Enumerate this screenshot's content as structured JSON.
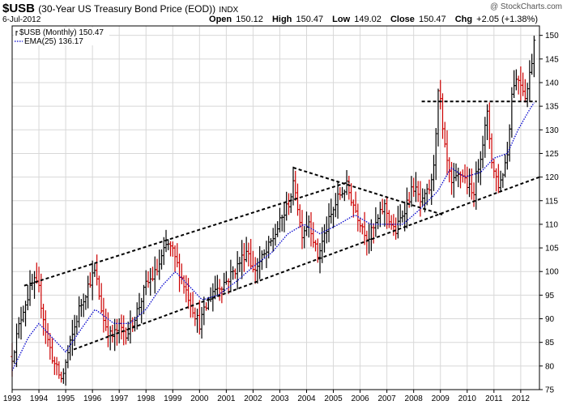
{
  "header": {
    "symbol": "$USB",
    "description": "(30-Year US Treasury Bond Price (EOD))",
    "exchange": "INDX",
    "date": "6-Jul-2012",
    "watermark": "@ StockCharts.com",
    "open_label": "Open",
    "open": "150.12",
    "high_label": "High",
    "high": "150.47",
    "low_label": "Low",
    "low": "149.02",
    "close_label": "Close",
    "close": "150.47",
    "chg_label": "Chg",
    "chg": "+2.05 (+1.38%)"
  },
  "legend": {
    "price": "$USB (Monthly) 150.47",
    "ema": "EMA(25) 136.17"
  },
  "colors": {
    "up": "#000000",
    "down": "#cc0000",
    "ema": "#0000cc",
    "trend": "#000000",
    "grid": "#d8d8d8"
  },
  "chart_data": {
    "type": "ohlc",
    "title": "$USB (30-Year US Treasury Bond Price (EOD))",
    "ylim": [
      75,
      152
    ],
    "xlim": [
      1993.0,
      2012.7
    ],
    "y_ticks": [
      75,
      80,
      85,
      90,
      95,
      100,
      105,
      110,
      115,
      120,
      125,
      130,
      135,
      140,
      145,
      150
    ],
    "x_ticks": [
      "1993",
      "1994",
      "1995",
      "1996",
      "1997",
      "1998",
      "1999",
      "2000",
      "2001",
      "2002",
      "2003",
      "2004",
      "2005",
      "2006",
      "2007",
      "2008",
      "2009",
      "2010",
      "2011",
      "2012"
    ],
    "grid": true,
    "price_anchors": [
      [
        1993.0,
        82
      ],
      [
        1993.4,
        92
      ],
      [
        1993.8,
        98
      ],
      [
        1994.0,
        96
      ],
      [
        1994.3,
        86
      ],
      [
        1994.6,
        80
      ],
      [
        1994.85,
        77
      ],
      [
        1995.1,
        83
      ],
      [
        1995.5,
        92
      ],
      [
        1995.9,
        98
      ],
      [
        1996.1,
        100
      ],
      [
        1996.4,
        90
      ],
      [
        1996.7,
        86
      ],
      [
        1997.0,
        88
      ],
      [
        1997.3,
        87
      ],
      [
        1997.7,
        92
      ],
      [
        1998.0,
        97
      ],
      [
        1998.4,
        100
      ],
      [
        1998.8,
        106
      ],
      [
        1999.0,
        104
      ],
      [
        1999.5,
        96
      ],
      [
        1999.9,
        90
      ],
      [
        2000.0,
        89
      ],
      [
        2000.5,
        96
      ],
      [
        2001.0,
        98
      ],
      [
        2001.4,
        101
      ],
      [
        2001.8,
        105
      ],
      [
        2002.0,
        100
      ],
      [
        2002.5,
        104
      ],
      [
        2002.9,
        109
      ],
      [
        2003.3,
        114
      ],
      [
        2003.55,
        119
      ],
      [
        2003.8,
        108
      ],
      [
        2004.1,
        111
      ],
      [
        2004.4,
        103
      ],
      [
        2004.8,
        110
      ],
      [
        2005.2,
        116
      ],
      [
        2005.5,
        118
      ],
      [
        2005.9,
        112
      ],
      [
        2006.3,
        107
      ],
      [
        2006.6,
        110
      ],
      [
        2006.9,
        114
      ],
      [
        2007.3,
        108
      ],
      [
        2007.7,
        114
      ],
      [
        2008.0,
        118
      ],
      [
        2008.3,
        114
      ],
      [
        2008.7,
        119
      ],
      [
        2008.95,
        140
      ],
      [
        2009.1,
        128
      ],
      [
        2009.4,
        118
      ],
      [
        2009.8,
        121
      ],
      [
        2010.2,
        116
      ],
      [
        2010.6,
        128
      ],
      [
        2010.75,
        133
      ],
      [
        2010.95,
        122
      ],
      [
        2011.2,
        118
      ],
      [
        2011.5,
        125
      ],
      [
        2011.7,
        140
      ],
      [
        2011.95,
        141
      ],
      [
        2012.2,
        137
      ],
      [
        2012.4,
        144
      ],
      [
        2012.52,
        150.5
      ]
    ],
    "ema_anchors": [
      [
        1993.0,
        79
      ],
      [
        1993.6,
        86
      ],
      [
        1994.0,
        89
      ],
      [
        1994.5,
        86
      ],
      [
        1995.0,
        83
      ],
      [
        1995.6,
        88
      ],
      [
        1996.1,
        92
      ],
      [
        1996.8,
        89
      ],
      [
        1997.4,
        89
      ],
      [
        1998.0,
        92
      ],
      [
        1998.6,
        97
      ],
      [
        1999.1,
        100
      ],
      [
        1999.6,
        97
      ],
      [
        2000.1,
        94
      ],
      [
        2000.7,
        95
      ],
      [
        2001.4,
        98
      ],
      [
        2002.0,
        101
      ],
      [
        2002.7,
        104
      ],
      [
        2003.3,
        108
      ],
      [
        2003.9,
        110
      ],
      [
        2004.5,
        108
      ],
      [
        2005.2,
        110
      ],
      [
        2005.8,
        112
      ],
      [
        2006.4,
        110
      ],
      [
        2007.0,
        110
      ],
      [
        2007.6,
        110
      ],
      [
        2008.2,
        113
      ],
      [
        2008.9,
        117
      ],
      [
        2009.4,
        122
      ],
      [
        2009.9,
        120
      ],
      [
        2010.5,
        121
      ],
      [
        2011.0,
        124
      ],
      [
        2011.5,
        125
      ],
      [
        2011.9,
        130
      ],
      [
        2012.3,
        134
      ],
      [
        2012.55,
        136.2
      ]
    ],
    "trendlines": [
      {
        "name": "channel-upper",
        "points": [
          [
            1993.45,
            97
          ],
          [
            2005.6,
            119
          ]
        ]
      },
      {
        "name": "channel-lower",
        "points": [
          [
            1995.3,
            83.5
          ],
          [
            2012.7,
            120
          ]
        ]
      },
      {
        "name": "triangle-upper",
        "points": [
          [
            2003.5,
            122
          ],
          [
            2009.1,
            112
          ]
        ]
      },
      {
        "name": "resistance",
        "points": [
          [
            2008.3,
            136
          ],
          [
            2012.6,
            136
          ]
        ]
      }
    ]
  }
}
